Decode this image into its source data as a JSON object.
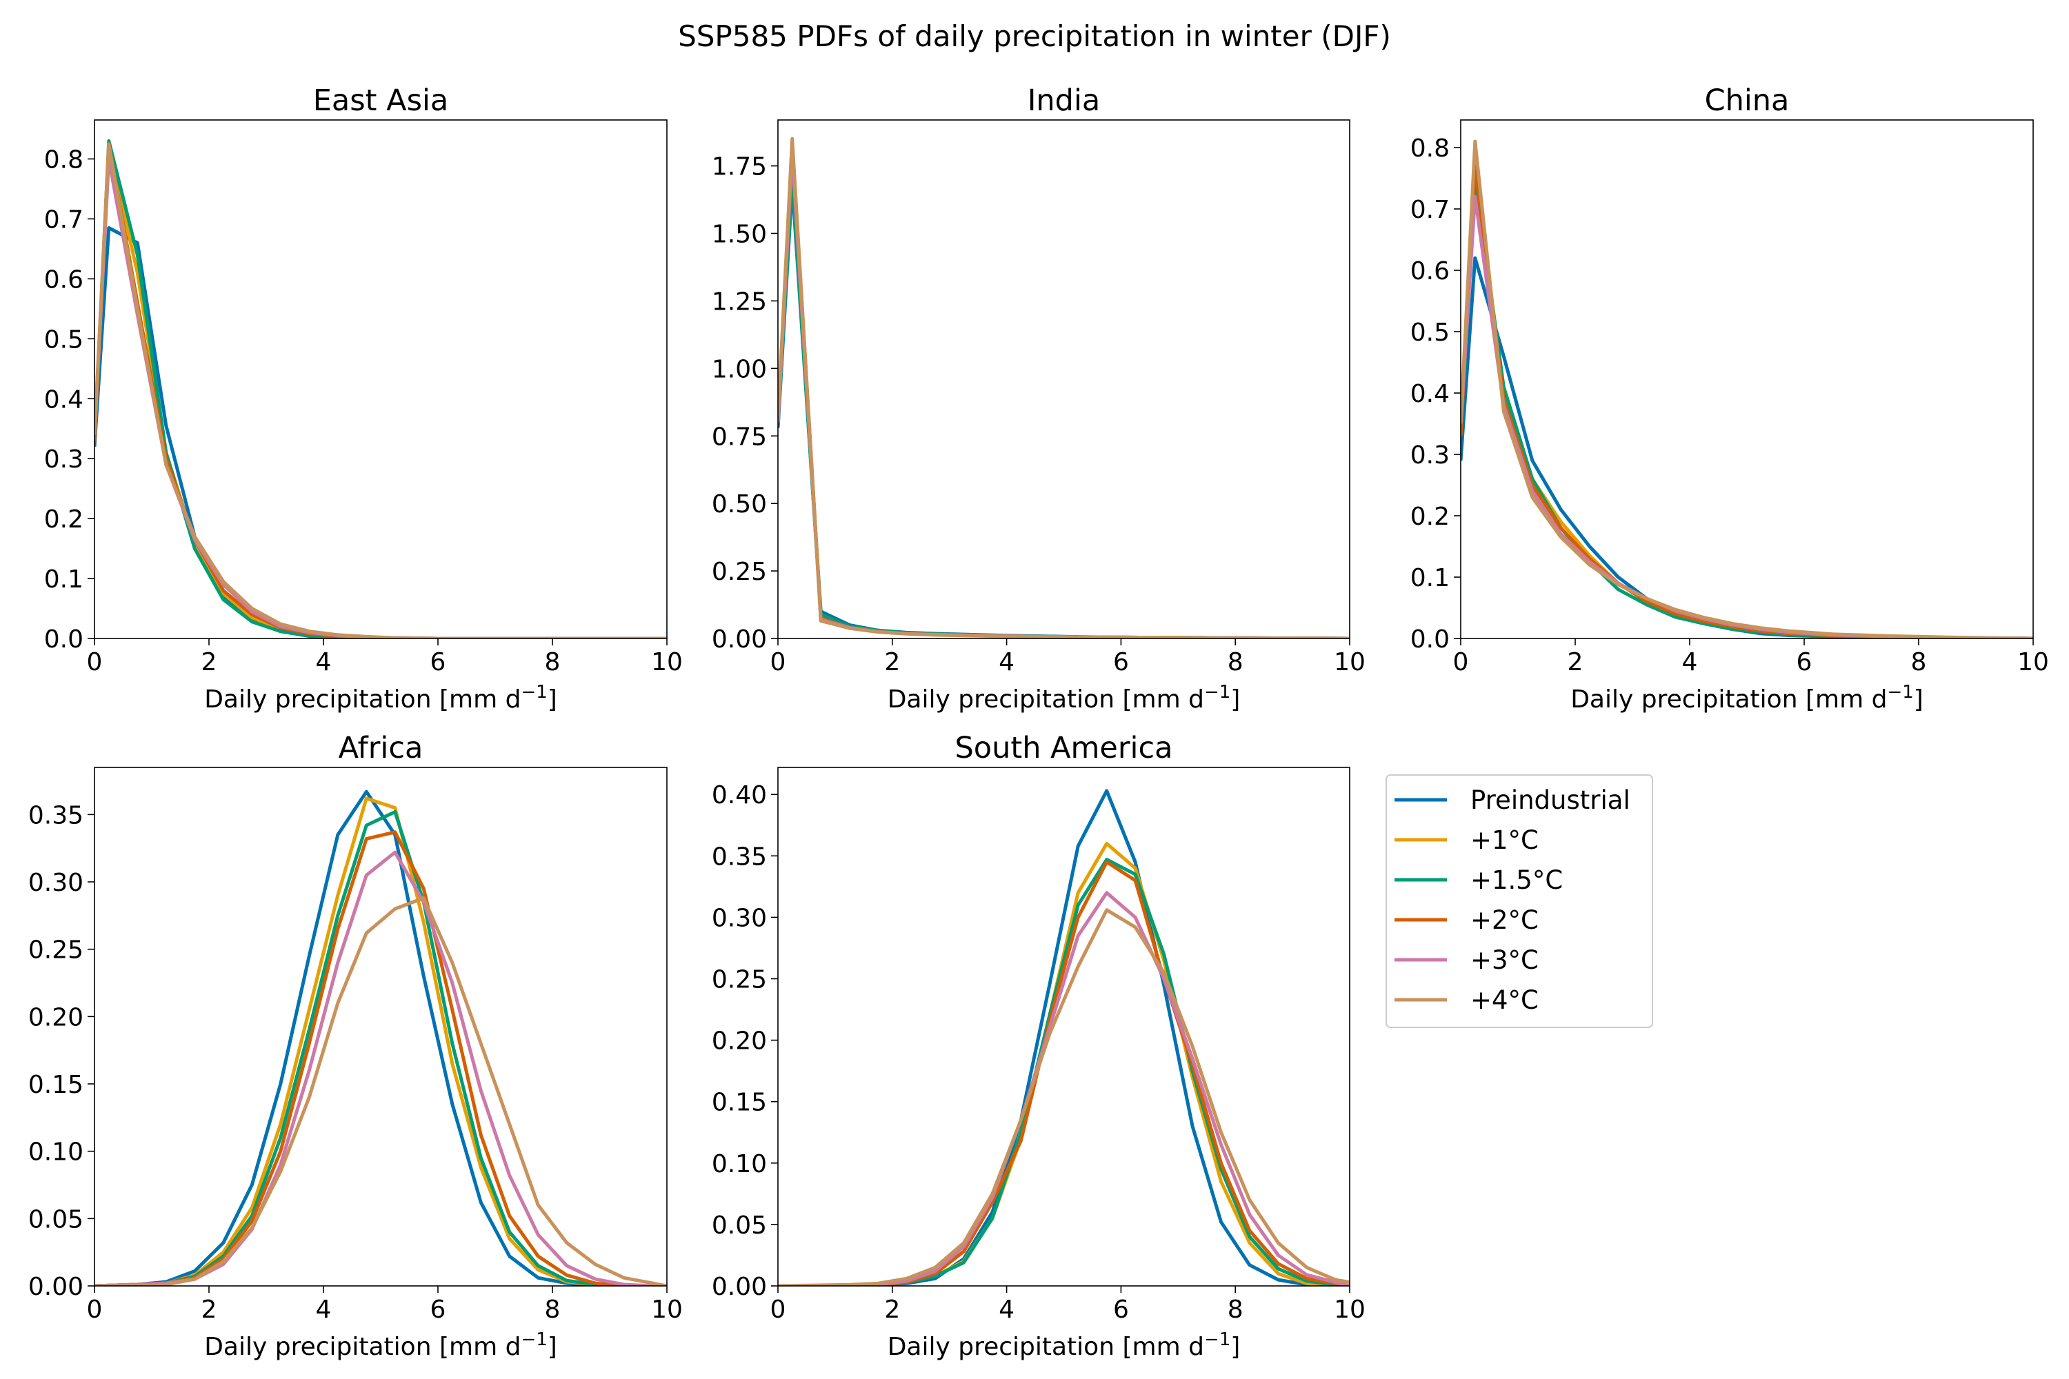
{
  "figure": {
    "title": "SSP585 PDFs of daily precipitation in winter (DJF)"
  },
  "legend": {
    "placement": "right of bottom-row panels",
    "entries": [
      {
        "label": "Preindustrial",
        "color": "#0072b2"
      },
      {
        "label": "+1°C",
        "color": "#e69f00"
      },
      {
        "label": "+1.5°C",
        "color": "#009e73"
      },
      {
        "label": "+2°C",
        "color": "#d55e00"
      },
      {
        "label": "+3°C",
        "color": "#cc79a7"
      },
      {
        "label": "+4°C",
        "color": "#c8925b"
      }
    ]
  },
  "chart_data": [
    {
      "type": "line",
      "title": "East Asia",
      "xlabel": "Daily precipitation [mm d⁻¹]",
      "xlim": [
        0,
        10
      ],
      "ylim": [
        0,
        0.865
      ],
      "xticks": [
        0,
        2,
        4,
        6,
        8,
        10
      ],
      "yticks": [
        0,
        0.1,
        0.2,
        0.3,
        0.4,
        0.5,
        0.6,
        0.7,
        0.8
      ],
      "ytick_labels": [
        "0.0",
        "0.1",
        "0.2",
        "0.3",
        "0.4",
        "0.5",
        "0.6",
        "0.7",
        "0.8"
      ],
      "x": [
        0,
        0.25,
        0.75,
        1.25,
        1.75,
        2.25,
        2.75,
        3.25,
        3.75,
        4.25,
        4.75,
        5.25,
        6,
        7,
        8,
        9,
        10
      ],
      "series": [
        {
          "name": "Preindustrial",
          "values": [
            0.32,
            0.685,
            0.66,
            0.355,
            0.17,
            0.07,
            0.03,
            0.012,
            0.004,
            0.001,
            0,
            0,
            0,
            0,
            0,
            0,
            0
          ]
        },
        {
          "name": "+1°C",
          "values": [
            0.33,
            0.82,
            0.61,
            0.31,
            0.16,
            0.075,
            0.035,
            0.016,
            0.007,
            0.003,
            0.001,
            0,
            0,
            0,
            0,
            0,
            0
          ]
        },
        {
          "name": "+1.5°C",
          "values": [
            0.33,
            0.83,
            0.64,
            0.31,
            0.15,
            0.065,
            0.028,
            0.012,
            0.005,
            0.002,
            0.001,
            0,
            0,
            0,
            0,
            0,
            0
          ]
        },
        {
          "name": "+2°C",
          "values": [
            0.33,
            0.825,
            0.56,
            0.3,
            0.165,
            0.08,
            0.04,
            0.018,
            0.008,
            0.004,
            0.002,
            0.001,
            0,
            0,
            0,
            0,
            0
          ]
        },
        {
          "name": "+3°C",
          "values": [
            0.34,
            0.8,
            0.54,
            0.29,
            0.165,
            0.09,
            0.045,
            0.02,
            0.01,
            0.005,
            0.002,
            0.001,
            0,
            0,
            0,
            0,
            0
          ]
        },
        {
          "name": "+4°C",
          "values": [
            0.34,
            0.825,
            0.55,
            0.29,
            0.17,
            0.095,
            0.05,
            0.024,
            0.012,
            0.006,
            0.003,
            0.001,
            0,
            0,
            0,
            0,
            0
          ]
        }
      ]
    },
    {
      "type": "line",
      "title": "India",
      "xlabel": "Daily precipitation [mm d⁻¹]",
      "xlim": [
        0,
        10
      ],
      "ylim": [
        0,
        1.92
      ],
      "xticks": [
        0,
        2,
        4,
        6,
        8,
        10
      ],
      "yticks": [
        0,
        0.25,
        0.5,
        0.75,
        1.0,
        1.25,
        1.5,
        1.75
      ],
      "ytick_labels": [
        "0.00",
        "0.25",
        "0.50",
        "0.75",
        "1.00",
        "1.25",
        "1.50",
        "1.75"
      ],
      "x": [
        0,
        0.25,
        0.75,
        1.25,
        1.75,
        2.25,
        2.75,
        3.25,
        3.75,
        4.25,
        4.75,
        5.25,
        6,
        7,
        8,
        9,
        10
      ],
      "series": [
        {
          "name": "Preindustrial",
          "values": [
            0.78,
            1.68,
            0.1,
            0.05,
            0.03,
            0.022,
            0.018,
            0.015,
            0.012,
            0.01,
            0.008,
            0.006,
            0.004,
            0.003,
            0.002,
            0.001,
            0
          ]
        },
        {
          "name": "+1°C",
          "values": [
            0.8,
            1.82,
            0.08,
            0.045,
            0.028,
            0.02,
            0.016,
            0.013,
            0.01,
            0.008,
            0.007,
            0.005,
            0.004,
            0.003,
            0.002,
            0.001,
            0
          ]
        },
        {
          "name": "+1.5°C",
          "values": [
            0.8,
            1.7,
            0.09,
            0.045,
            0.03,
            0.02,
            0.016,
            0.013,
            0.011,
            0.009,
            0.007,
            0.005,
            0.004,
            0.003,
            0.002,
            0.001,
            0
          ]
        },
        {
          "name": "+2°C",
          "values": [
            0.8,
            1.84,
            0.075,
            0.04,
            0.025,
            0.018,
            0.014,
            0.012,
            0.01,
            0.008,
            0.006,
            0.005,
            0.004,
            0.003,
            0.002,
            0.001,
            0
          ]
        },
        {
          "name": "+3°C",
          "values": [
            0.8,
            1.8,
            0.07,
            0.04,
            0.025,
            0.018,
            0.014,
            0.012,
            0.01,
            0.008,
            0.006,
            0.005,
            0.004,
            0.003,
            0.002,
            0.001,
            0
          ]
        },
        {
          "name": "+4°C",
          "values": [
            0.82,
            1.85,
            0.065,
            0.038,
            0.024,
            0.017,
            0.013,
            0.011,
            0.009,
            0.007,
            0.006,
            0.005,
            0.004,
            0.003,
            0.002,
            0.001,
            0
          ]
        }
      ]
    },
    {
      "type": "line",
      "title": "China",
      "xlabel": "Daily precipitation [mm d⁻¹]",
      "xlim": [
        0,
        10
      ],
      "ylim": [
        0,
        0.845
      ],
      "xticks": [
        0,
        2,
        4,
        6,
        8,
        10
      ],
      "yticks": [
        0,
        0.1,
        0.2,
        0.3,
        0.4,
        0.5,
        0.6,
        0.7,
        0.8
      ],
      "ytick_labels": [
        "0.0",
        "0.1",
        "0.2",
        "0.3",
        "0.4",
        "0.5",
        "0.6",
        "0.7",
        "0.8"
      ],
      "x": [
        0,
        0.25,
        0.75,
        1.25,
        1.75,
        2.25,
        2.75,
        3.25,
        3.75,
        4.25,
        4.75,
        5.25,
        5.75,
        6.5,
        7.5,
        8.5,
        10
      ],
      "series": [
        {
          "name": "Preindustrial",
          "values": [
            0.29,
            0.62,
            0.46,
            0.29,
            0.21,
            0.15,
            0.1,
            0.065,
            0.04,
            0.025,
            0.015,
            0.008,
            0.005,
            0.003,
            0.001,
            0,
            0
          ]
        },
        {
          "name": "+1°C",
          "values": [
            0.33,
            0.77,
            0.4,
            0.26,
            0.19,
            0.135,
            0.09,
            0.06,
            0.04,
            0.028,
            0.018,
            0.012,
            0.008,
            0.005,
            0.002,
            0.001,
            0
          ]
        },
        {
          "name": "+1.5°C",
          "values": [
            0.33,
            0.75,
            0.41,
            0.26,
            0.18,
            0.125,
            0.08,
            0.055,
            0.035,
            0.024,
            0.015,
            0.01,
            0.006,
            0.004,
            0.002,
            0.001,
            0
          ]
        },
        {
          "name": "+2°C",
          "values": [
            0.33,
            0.77,
            0.39,
            0.25,
            0.18,
            0.13,
            0.09,
            0.06,
            0.04,
            0.028,
            0.019,
            0.012,
            0.008,
            0.005,
            0.002,
            0.001,
            0
          ]
        },
        {
          "name": "+3°C",
          "values": [
            0.35,
            0.72,
            0.38,
            0.24,
            0.17,
            0.125,
            0.09,
            0.065,
            0.045,
            0.032,
            0.022,
            0.015,
            0.01,
            0.006,
            0.003,
            0.001,
            0
          ]
        },
        {
          "name": "+4°C",
          "values": [
            0.35,
            0.81,
            0.37,
            0.23,
            0.165,
            0.12,
            0.088,
            0.065,
            0.047,
            0.034,
            0.024,
            0.017,
            0.012,
            0.007,
            0.004,
            0.002,
            0
          ]
        }
      ]
    },
    {
      "type": "line",
      "title": "Africa",
      "xlabel": "Daily precipitation [mm d⁻¹]",
      "xlim": [
        0,
        10
      ],
      "ylim": [
        0,
        0.385
      ],
      "xticks": [
        0,
        2,
        4,
        6,
        8,
        10
      ],
      "yticks": [
        0,
        0.05,
        0.1,
        0.15,
        0.2,
        0.25,
        0.3,
        0.35
      ],
      "ytick_labels": [
        "0.00",
        "0.05",
        "0.10",
        "0.15",
        "0.20",
        "0.25",
        "0.30",
        "0.35"
      ],
      "x": [
        0,
        0.75,
        1.25,
        1.75,
        2.25,
        2.75,
        3.25,
        3.75,
        4.25,
        4.75,
        5.25,
        5.75,
        6.25,
        6.75,
        7.25,
        7.75,
        8.25,
        8.75,
        9.25,
        9.75,
        10
      ],
      "series": [
        {
          "name": "Preindustrial",
          "values": [
            0,
            0.001,
            0.003,
            0.011,
            0.032,
            0.075,
            0.15,
            0.245,
            0.335,
            0.367,
            0.335,
            0.23,
            0.135,
            0.062,
            0.022,
            0.006,
            0.002,
            0,
            0,
            0,
            0
          ]
        },
        {
          "name": "+1°C",
          "values": [
            0,
            0.001,
            0.002,
            0.008,
            0.025,
            0.058,
            0.12,
            0.205,
            0.29,
            0.362,
            0.355,
            0.27,
            0.165,
            0.088,
            0.035,
            0.012,
            0.003,
            0.001,
            0,
            0,
            0
          ]
        },
        {
          "name": "+1.5°C",
          "values": [
            0,
            0.001,
            0.002,
            0.007,
            0.022,
            0.052,
            0.11,
            0.19,
            0.275,
            0.342,
            0.352,
            0.285,
            0.18,
            0.095,
            0.04,
            0.015,
            0.004,
            0.001,
            0,
            0,
            0
          ]
        },
        {
          "name": "+2°C",
          "values": [
            0,
            0.001,
            0.002,
            0.006,
            0.02,
            0.048,
            0.1,
            0.18,
            0.265,
            0.332,
            0.337,
            0.295,
            0.205,
            0.112,
            0.052,
            0.022,
            0.008,
            0.002,
            0,
            0,
            0
          ]
        },
        {
          "name": "+3°C",
          "values": [
            0,
            0.001,
            0.002,
            0.005,
            0.016,
            0.042,
            0.09,
            0.16,
            0.24,
            0.305,
            0.322,
            0.285,
            0.225,
            0.145,
            0.082,
            0.038,
            0.015,
            0.005,
            0.001,
            0,
            0
          ]
        },
        {
          "name": "+4°C",
          "values": [
            0,
            0,
            0.001,
            0.005,
            0.018,
            0.043,
            0.085,
            0.14,
            0.21,
            0.262,
            0.28,
            0.288,
            0.24,
            0.18,
            0.12,
            0.06,
            0.032,
            0.016,
            0.006,
            0.002,
            0
          ]
        }
      ]
    },
    {
      "type": "line",
      "title": "South America",
      "xlabel": "Daily precipitation [mm d⁻¹]",
      "xlim": [
        0,
        10
      ],
      "ylim": [
        0,
        0.422
      ],
      "xticks": [
        0,
        2,
        4,
        6,
        8,
        10
      ],
      "yticks": [
        0,
        0.05,
        0.1,
        0.15,
        0.2,
        0.25,
        0.3,
        0.35,
        0.4
      ],
      "ytick_labels": [
        "0.00",
        "0.05",
        "0.10",
        "0.15",
        "0.20",
        "0.25",
        "0.30",
        "0.35",
        "0.40"
      ],
      "x": [
        0,
        1.25,
        1.75,
        2.25,
        2.75,
        3.25,
        3.75,
        4.25,
        4.75,
        5.25,
        5.75,
        6.25,
        6.75,
        7.25,
        7.75,
        8.25,
        8.75,
        9.25,
        9.75,
        10
      ],
      "series": [
        {
          "name": "Preindustrial",
          "values": [
            0,
            0,
            0.001,
            0.002,
            0.006,
            0.022,
            0.06,
            0.135,
            0.245,
            0.358,
            0.403,
            0.345,
            0.245,
            0.13,
            0.052,
            0.017,
            0.005,
            0.001,
            0,
            0
          ]
        },
        {
          "name": "+1°C",
          "values": [
            0,
            0,
            0.001,
            0.003,
            0.008,
            0.02,
            0.055,
            0.12,
            0.22,
            0.32,
            0.36,
            0.34,
            0.265,
            0.17,
            0.085,
            0.035,
            0.01,
            0.002,
            0,
            0
          ]
        },
        {
          "name": "+1.5°C",
          "values": [
            0,
            0,
            0.001,
            0.003,
            0.008,
            0.019,
            0.055,
            0.125,
            0.22,
            0.31,
            0.347,
            0.335,
            0.27,
            0.175,
            0.095,
            0.04,
            0.014,
            0.004,
            0.001,
            0
          ]
        },
        {
          "name": "+2°C",
          "values": [
            0,
            0,
            0.001,
            0.003,
            0.01,
            0.028,
            0.068,
            0.118,
            0.215,
            0.3,
            0.345,
            0.33,
            0.25,
            0.18,
            0.1,
            0.045,
            0.018,
            0.006,
            0.002,
            0
          ]
        },
        {
          "name": "+3°C",
          "values": [
            0,
            0,
            0.001,
            0.004,
            0.012,
            0.032,
            0.072,
            0.135,
            0.21,
            0.285,
            0.32,
            0.3,
            0.25,
            0.185,
            0.115,
            0.058,
            0.025,
            0.009,
            0.003,
            0
          ]
        },
        {
          "name": "+4°C",
          "values": [
            0,
            0.001,
            0.002,
            0.006,
            0.015,
            0.035,
            0.075,
            0.135,
            0.205,
            0.26,
            0.306,
            0.292,
            0.255,
            0.195,
            0.125,
            0.07,
            0.035,
            0.015,
            0.005,
            0.003
          ]
        }
      ]
    }
  ]
}
